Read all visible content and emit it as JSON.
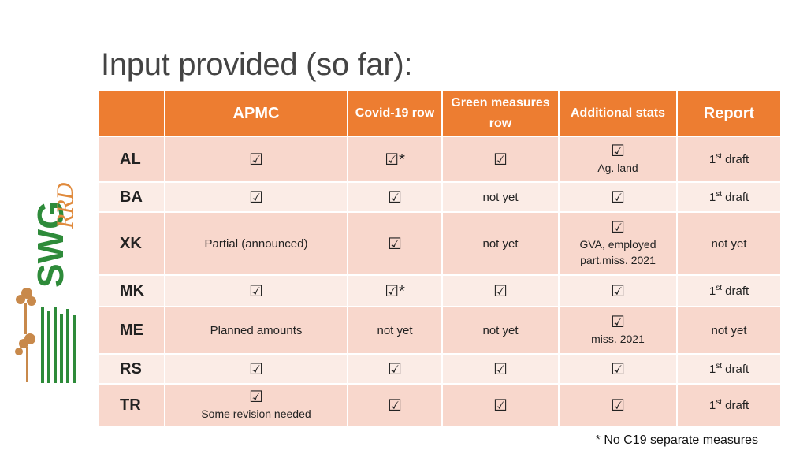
{
  "title": "Input provided (so far):",
  "footnote": "* No C19 separate measures",
  "colors": {
    "header": "#ed7d31",
    "row_odd": "#f8d7cc",
    "row_even": "#fbece6"
  },
  "check_glyph": "☑",
  "headers": [
    "",
    "APMC",
    "Covid-19 row",
    "Green measures row",
    "Additional stats",
    "Report"
  ],
  "rows": [
    {
      "code": "AL",
      "apmc": "☑",
      "covid": "☑*",
      "green": "☑",
      "stats_mark": "☑",
      "stats_note": "Ag. land",
      "report_main": "1",
      "report_sup": "st",
      "report_rest": " draft"
    },
    {
      "code": "BA",
      "apmc": "☑",
      "covid": "☑",
      "green": "not yet",
      "stats_mark": "☑",
      "stats_note": "",
      "report_main": "1",
      "report_sup": "st",
      "report_rest": " draft"
    },
    {
      "code": "XK",
      "apmc": "Partial (announced)",
      "covid": "☑",
      "green": "not yet",
      "stats_mark": "☑",
      "stats_note": "GVA, employed part.miss. 2021",
      "report_main": "not yet",
      "report_sup": "",
      "report_rest": ""
    },
    {
      "code": "MK",
      "apmc": "☑",
      "covid": "☑*",
      "green": "☑",
      "stats_mark": "☑",
      "stats_note": "",
      "report_main": "1",
      "report_sup": "st",
      "report_rest": " draft"
    },
    {
      "code": "ME",
      "apmc": "Planned amounts",
      "covid": "not yet",
      "green": "not yet",
      "stats_mark": "☑",
      "stats_note": "miss. 2021",
      "report_main": "not yet",
      "report_sup": "",
      "report_rest": ""
    },
    {
      "code": "RS",
      "apmc": "☑",
      "covid": "☑",
      "green": "☑",
      "stats_mark": "☑",
      "stats_note": "",
      "report_main": "1",
      "report_sup": "st",
      "report_rest": " draft"
    },
    {
      "code": "TR",
      "apmc": "☑",
      "apmc_note": "Some revision needed",
      "covid": "☑",
      "green": "☑",
      "stats_mark": "☑",
      "stats_note": "",
      "report_main": "1",
      "report_sup": "st",
      "report_rest": " draft"
    }
  ]
}
